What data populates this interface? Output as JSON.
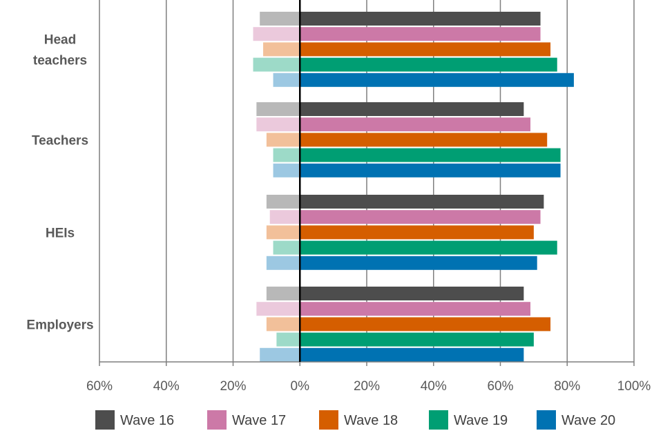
{
  "chart_data": {
    "type": "bar",
    "orientation": "horizontal-diverging",
    "title": "",
    "xlabel": "",
    "ylabel": "",
    "xlim": [
      -60,
      100
    ],
    "x_ticks": [
      -60,
      -40,
      -20,
      0,
      20,
      40,
      60,
      80,
      100
    ],
    "x_tick_labels": [
      "60%",
      "40%",
      "20%",
      "0%",
      "20%",
      "40%",
      "60%",
      "80%",
      "100%"
    ],
    "grid": true,
    "legend_position": "bottom",
    "categories": [
      [
        "Head",
        "teachers"
      ],
      [
        "Teachers"
      ],
      [
        "HEIs"
      ],
      [
        "Employers"
      ]
    ],
    "series": [
      {
        "name": "Wave 16",
        "color": "#4d4d4d",
        "light_color": "#b8b8b8",
        "positive": [
          72,
          67,
          73,
          67
        ],
        "negative": [
          -12,
          -13,
          -10,
          -10
        ]
      },
      {
        "name": "Wave 17",
        "color": "#cc79a7",
        "light_color": "#ebc9dc",
        "positive": [
          72,
          69,
          72,
          69
        ],
        "negative": [
          -14,
          -13,
          -9,
          -13
        ]
      },
      {
        "name": "Wave 18",
        "color": "#d55e00",
        "light_color": "#f2c09a",
        "positive": [
          75,
          74,
          70,
          75
        ],
        "negative": [
          -11,
          -10,
          -10,
          -10
        ]
      },
      {
        "name": "Wave 19",
        "color": "#009e73",
        "light_color": "#9ddac8",
        "positive": [
          77,
          78,
          77,
          70
        ],
        "negative": [
          -14,
          -8,
          -8,
          -7
        ]
      },
      {
        "name": "Wave 20",
        "color": "#0072b2",
        "light_color": "#9cc8e2",
        "positive": [
          82,
          78,
          71,
          67
        ],
        "negative": [
          -8,
          -8,
          -10,
          -12
        ]
      }
    ]
  }
}
